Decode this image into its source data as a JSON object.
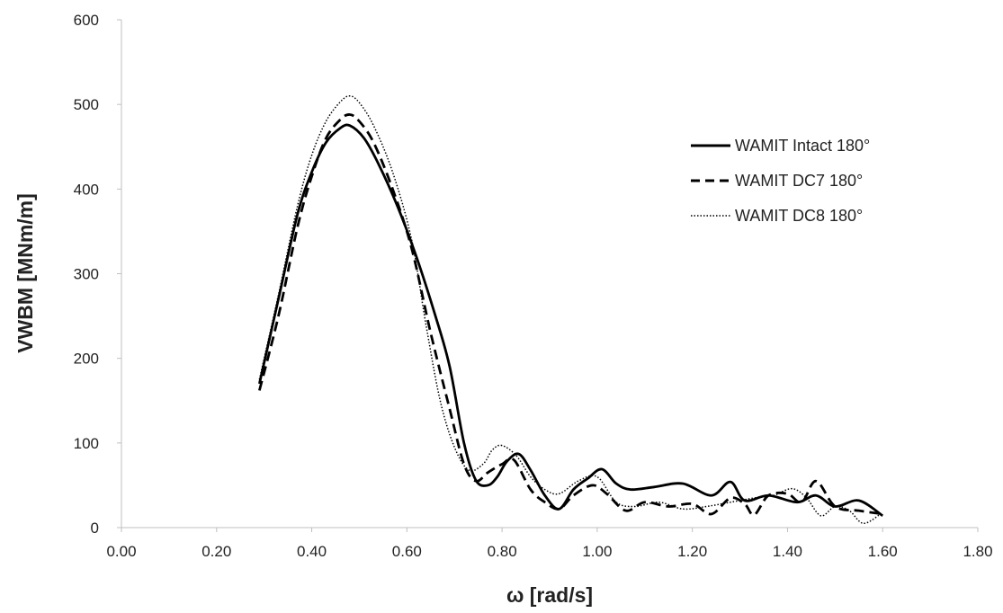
{
  "chart_data": {
    "type": "line",
    "title": "",
    "xlabel": "ω [rad/s]",
    "ylabel": "VWBM [MNm/m]",
    "xlim": [
      0,
      1.8
    ],
    "ylim": [
      0,
      600
    ],
    "x_ticks": [
      "0.00",
      "0.20",
      "0.40",
      "0.60",
      "0.80",
      "1.00",
      "1.20",
      "1.40",
      "1.60",
      "1.80"
    ],
    "y_ticks": [
      "0",
      "100",
      "200",
      "300",
      "400",
      "500",
      "600"
    ],
    "grid": false,
    "legend_position": "right",
    "series": [
      {
        "name": "WAMIT Intact 180°",
        "style": "solid",
        "color": "#000000",
        "x": [
          0.29,
          0.33,
          0.37,
          0.4,
          0.43,
          0.46,
          0.48,
          0.51,
          0.54,
          0.58,
          0.62,
          0.66,
          0.69,
          0.72,
          0.745,
          0.77,
          0.79,
          0.81,
          0.835,
          0.86,
          0.89,
          0.92,
          0.95,
          0.98,
          1.01,
          1.04,
          1.07,
          1.12,
          1.18,
          1.24,
          1.28,
          1.31,
          1.36,
          1.42,
          1.46,
          1.5,
          1.55,
          1.6
        ],
        "y": [
          170,
          270,
          370,
          420,
          455,
          472,
          475,
          460,
          430,
          380,
          320,
          250,
          190,
          100,
          56,
          50,
          60,
          78,
          87,
          68,
          38,
          22,
          45,
          58,
          69,
          52,
          45,
          48,
          52,
          38,
          54,
          32,
          38,
          30,
          38,
          25,
          32,
          14
        ]
      },
      {
        "name": "WAMIT DC7 180°",
        "style": "dashed",
        "color": "#000000",
        "x": [
          0.29,
          0.33,
          0.37,
          0.4,
          0.43,
          0.46,
          0.48,
          0.5,
          0.53,
          0.57,
          0.61,
          0.65,
          0.69,
          0.72,
          0.745,
          0.77,
          0.8,
          0.825,
          0.86,
          0.89,
          0.92,
          0.95,
          0.99,
          1.02,
          1.06,
          1.1,
          1.15,
          1.2,
          1.24,
          1.28,
          1.31,
          1.33,
          1.36,
          1.4,
          1.43,
          1.46,
          1.5,
          1.55,
          1.6
        ],
        "y": [
          162,
          250,
          355,
          415,
          460,
          482,
          488,
          480,
          455,
          400,
          330,
          230,
          140,
          75,
          55,
          65,
          75,
          80,
          45,
          30,
          22,
          38,
          50,
          40,
          20,
          30,
          25,
          28,
          16,
          35,
          28,
          15,
          38,
          40,
          30,
          55,
          25,
          20,
          16
        ]
      },
      {
        "name": "WAMIT DC8 180°",
        "style": "dotted",
        "color": "#000000",
        "x": [
          0.29,
          0.33,
          0.37,
          0.4,
          0.43,
          0.46,
          0.48,
          0.5,
          0.53,
          0.57,
          0.61,
          0.64,
          0.67,
          0.7,
          0.73,
          0.76,
          0.78,
          0.8,
          0.83,
          0.86,
          0.89,
          0.92,
          0.96,
          1.0,
          1.04,
          1.08,
          1.13,
          1.18,
          1.23,
          1.28,
          1.33,
          1.37,
          1.41,
          1.44,
          1.47,
          1.5,
          1.53,
          1.56,
          1.6
        ],
        "y": [
          175,
          275,
          380,
          440,
          480,
          503,
          510,
          502,
          475,
          420,
          340,
          240,
          150,
          95,
          68,
          75,
          92,
          97,
          85,
          60,
          45,
          40,
          55,
          60,
          30,
          25,
          30,
          22,
          25,
          30,
          35,
          38,
          46,
          35,
          14,
          25,
          20,
          5,
          18
        ]
      }
    ]
  }
}
